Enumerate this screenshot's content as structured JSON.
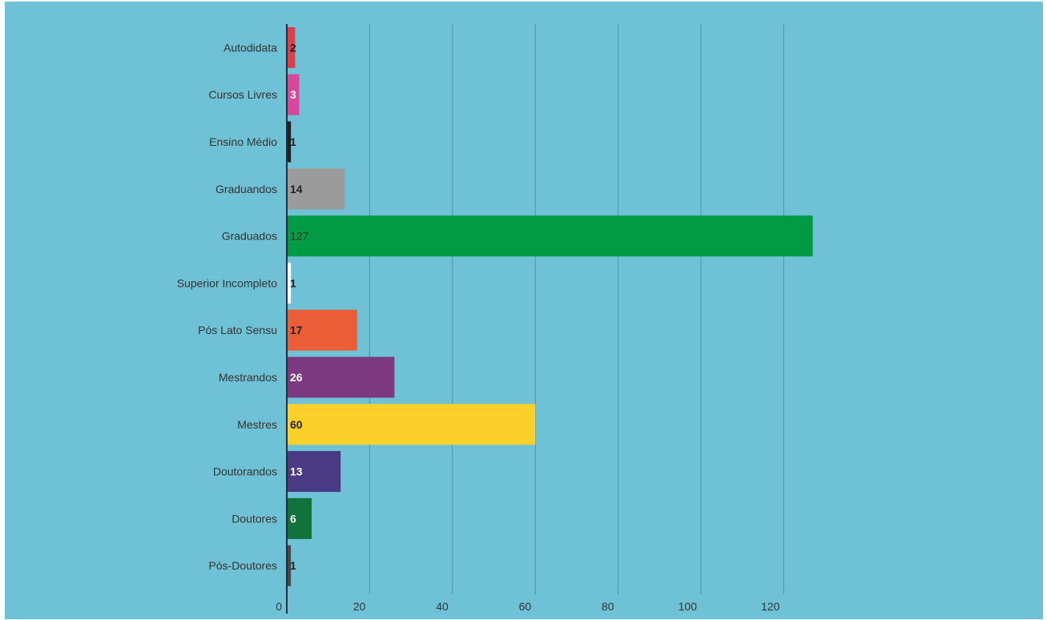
{
  "colors": {
    "background": "#6fc1d5",
    "grid": "#4f93a6",
    "axis": "#2b2b2b",
    "category_label": "#333333",
    "tick_label": "#333333"
  },
  "chart_data": {
    "type": "bar",
    "orientation": "horizontal",
    "title": "",
    "xlabel": "",
    "ylabel": "",
    "xlim": [
      0,
      127
    ],
    "xticks": [
      0,
      20,
      40,
      60,
      80,
      100,
      120
    ],
    "grid": true,
    "legend": "none",
    "categories": [
      "Autodidata",
      "Cursos Livres",
      "Ensino Médio",
      "Graduandos",
      "Graduados",
      "Superior Incompleto",
      "Pós Lato Sensu",
      "Mestrandos",
      "Mestres",
      "Doutorandos",
      "Doutores",
      "Pós-Doutores"
    ],
    "values": [
      2,
      3,
      1,
      14,
      127,
      1,
      17,
      26,
      60,
      13,
      6,
      1
    ],
    "bar_colors": [
      "#e23d47",
      "#d7489a",
      "#202020",
      "#9b9b9b",
      "#009b42",
      "#ffffff",
      "#ea5d36",
      "#7c397f",
      "#fbd02b",
      "#4a3a83",
      "#11733b",
      "#474747"
    ],
    "label_colors": [
      "#222222",
      "#ffffff",
      "#222222",
      "#222222",
      "#333333",
      "#222222",
      "#222222",
      "#ffffff",
      "#222222",
      "#ffffff",
      "#ffffff",
      "#222222"
    ]
  }
}
